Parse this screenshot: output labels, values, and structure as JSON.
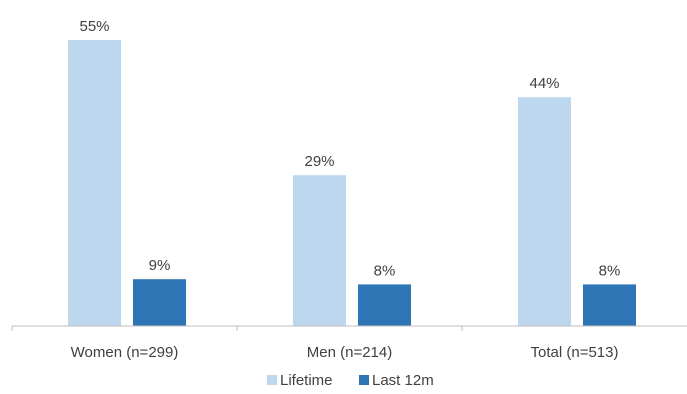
{
  "chart_data": {
    "type": "bar",
    "categories": [
      "Women (n=299)",
      "Men (n=214)",
      "Total (n=513)"
    ],
    "series": [
      {
        "name": "Lifetime",
        "values": [
          55,
          29,
          44
        ],
        "labels": [
          "55%",
          "29%",
          "44%"
        ],
        "color": "#bdd7ee"
      },
      {
        "name": "Last 12m",
        "values": [
          9,
          8,
          8
        ],
        "labels": [
          "9%",
          "8%",
          "8%"
        ],
        "color": "#2e75b6"
      }
    ],
    "title": "",
    "xlabel": "",
    "ylabel": "",
    "ylim": [
      0,
      60
    ],
    "grid": false,
    "legend": "bottom-center",
    "axis_color": "#bfbfbf"
  }
}
